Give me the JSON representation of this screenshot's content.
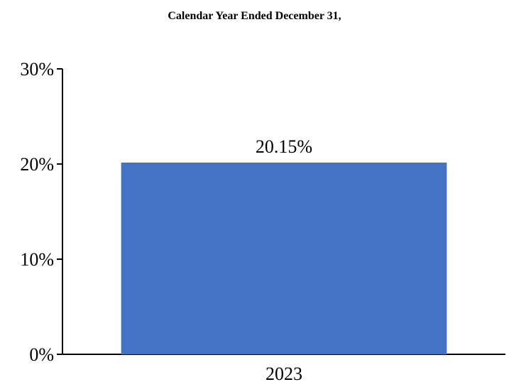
{
  "chart_data": {
    "type": "bar",
    "title": "Calendar Year Ended December 31,",
    "categories": [
      "2023"
    ],
    "values": [
      20.15
    ],
    "data_labels": [
      "20.15%"
    ],
    "ylim": [
      0,
      30
    ],
    "yticks": [
      0,
      10,
      20,
      30
    ],
    "ytick_labels": [
      "0%",
      "10%",
      "20%",
      "30%"
    ],
    "xlabel": "",
    "ylabel": "",
    "grid": false,
    "bar_color": "#4472C4"
  }
}
